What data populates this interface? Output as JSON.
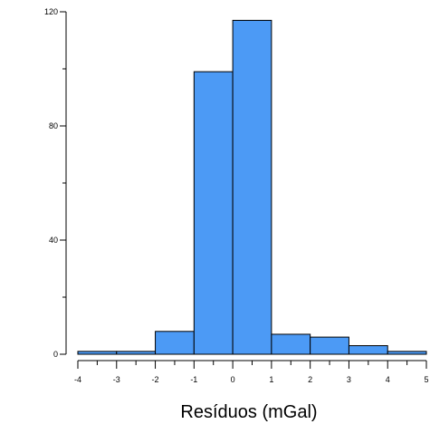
{
  "chart_data": {
    "type": "bar",
    "title": "",
    "xlabel": "Resíduos (mGal)",
    "ylabel": "",
    "bins": [
      {
        "from": -4,
        "to": -3,
        "count": 1
      },
      {
        "from": -3,
        "to": -2,
        "count": 1
      },
      {
        "from": -2,
        "to": -1,
        "count": 8
      },
      {
        "from": -1,
        "to": 0,
        "count": 99
      },
      {
        "from": 0,
        "to": 1,
        "count": 117
      },
      {
        "from": 1,
        "to": 2,
        "count": 7
      },
      {
        "from": 2,
        "to": 3,
        "count": 6
      },
      {
        "from": 3,
        "to": 4,
        "count": 3
      },
      {
        "from": 4,
        "to": 5,
        "count": 1
      }
    ],
    "xlim": [
      -4,
      5
    ],
    "ylim": [
      0,
      120
    ],
    "x_ticks": [
      "-4",
      "-3",
      "-2",
      "-1",
      "0",
      "1",
      "2",
      "3",
      "4",
      "5"
    ],
    "y_ticks": [
      "0",
      "40",
      "80",
      "120"
    ],
    "grid": false,
    "colors": {
      "bar_fill": "#4C9AF5",
      "bar_stroke": "#000000",
      "axis": "#000000"
    }
  }
}
